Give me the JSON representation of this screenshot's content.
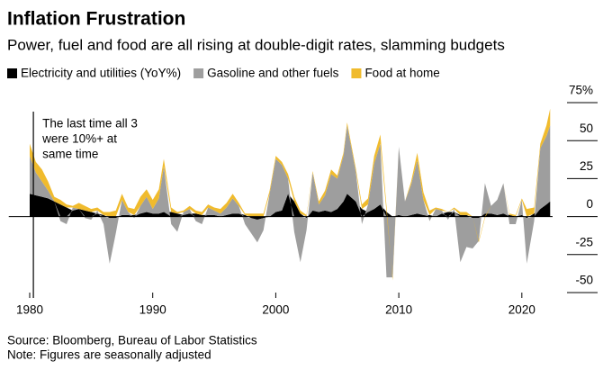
{
  "chart_data": {
    "type": "area",
    "stacked": true,
    "title": "Inflation Frustration",
    "subtitle": "Power, fuel and food are all rising at double-digit rates, slamming budgets",
    "source": "Source: Bloomberg, Bureau of Labor Statistics",
    "note": "Note: Figures are seasonally adjusted",
    "annotation": {
      "lines": [
        "The last time all 3",
        "were 10%+ at",
        "same time"
      ],
      "x": 1980.3
    },
    "x": [
      1980.0,
      1980.5,
      1981.0,
      1981.5,
      1982.0,
      1982.5,
      1983.0,
      1983.5,
      1984.0,
      1984.5,
      1985.0,
      1985.5,
      1986.0,
      1986.5,
      1987.0,
      1987.5,
      1988.0,
      1988.5,
      1989.0,
      1989.5,
      1990.0,
      1990.5,
      1990.9,
      1991.5,
      1992.0,
      1992.5,
      1993.0,
      1993.5,
      1994.0,
      1994.5,
      1995.0,
      1995.5,
      1996.0,
      1996.5,
      1997.0,
      1997.5,
      1998.0,
      1998.5,
      1999.0,
      1999.5,
      2000.0,
      2000.5,
      2001.0,
      2001.5,
      2002.0,
      2002.5,
      2003.0,
      2003.5,
      2004.0,
      2004.5,
      2005.0,
      2005.5,
      2005.8,
      2006.5,
      2007.0,
      2007.5,
      2008.0,
      2008.5,
      2009.0,
      2009.5,
      2010.0,
      2010.5,
      2011.0,
      2011.5,
      2012.0,
      2012.5,
      2013.0,
      2013.5,
      2014.0,
      2014.5,
      2015.0,
      2015.5,
      2016.0,
      2016.5,
      2017.0,
      2017.5,
      2018.0,
      2018.5,
      2019.0,
      2019.5,
      2020.0,
      2020.4,
      2021.0,
      2021.5,
      2022.0,
      2022.3
    ],
    "series": [
      {
        "name": "Electricity and utilities (YoY%)",
        "color": "#000000",
        "values": [
          15,
          14,
          13,
          12,
          10,
          8,
          6,
          4,
          5,
          4,
          3,
          2,
          1,
          -1,
          -1,
          1,
          1,
          1,
          2,
          3,
          2,
          2,
          3,
          3,
          2,
          1,
          2,
          2,
          1,
          1,
          1,
          0,
          1,
          2,
          2,
          1,
          -1,
          -2,
          -1,
          0,
          3,
          4,
          15,
          10,
          2,
          -1,
          4,
          3,
          4,
          3,
          5,
          10,
          15,
          10,
          5,
          3,
          5,
          8,
          3,
          0,
          1,
          0,
          1,
          2,
          1,
          1,
          0,
          2,
          3,
          3,
          1,
          1,
          -1,
          -1,
          2,
          2,
          1,
          2,
          1,
          0,
          1,
          -1,
          2,
          5,
          8,
          10
        ]
      },
      {
        "name": "Gasoline and other fuels",
        "color": "#9e9e9e",
        "values": [
          25,
          15,
          10,
          5,
          0,
          -3,
          -5,
          2,
          0,
          -1,
          -2,
          2,
          -5,
          -30,
          -10,
          10,
          2,
          -1,
          5,
          10,
          3,
          10,
          30,
          -5,
          -10,
          2,
          3,
          -3,
          -5,
          5,
          3,
          2,
          5,
          10,
          5,
          -5,
          -10,
          -15,
          -8,
          15,
          35,
          30,
          10,
          -10,
          -30,
          -8,
          25,
          5,
          10,
          25,
          20,
          30,
          45,
          20,
          -5,
          5,
          30,
          40,
          -40,
          -40,
          45,
          10,
          20,
          35,
          10,
          -3,
          5,
          2,
          -2,
          2,
          -30,
          -20,
          -20,
          -15,
          20,
          5,
          10,
          20,
          -5,
          -5,
          10,
          -30,
          -3,
          40,
          45,
          50
        ]
      },
      {
        "name": "Food at home",
        "color": "#f0bb2d",
        "values": [
          8,
          7,
          8,
          6,
          3,
          3,
          2,
          1,
          4,
          3,
          2,
          2,
          2,
          3,
          4,
          4,
          3,
          4,
          6,
          5,
          6,
          6,
          5,
          3,
          1,
          1,
          2,
          2,
          2,
          2,
          2,
          3,
          3,
          3,
          2,
          1,
          2,
          2,
          2,
          2,
          2,
          2,
          3,
          3,
          2,
          1,
          1,
          2,
          3,
          3,
          2,
          2,
          2,
          2,
          3,
          4,
          5,
          6,
          4,
          -2,
          0,
          0,
          2,
          5,
          5,
          3,
          1,
          1,
          0,
          1,
          2,
          2,
          0,
          -1,
          -1,
          0,
          0,
          0,
          1,
          1,
          1,
          5,
          4,
          3,
          7,
          11
        ]
      }
    ],
    "xlim": [
      1978.3,
      2022.5
    ],
    "xticks": [
      1980,
      1990,
      2000,
      2010,
      2020
    ],
    "ylim": [
      -50,
      75
    ],
    "yticks": [
      {
        "value": 75,
        "label": "75%"
      },
      50,
      25,
      0,
      -25,
      -50
    ]
  }
}
